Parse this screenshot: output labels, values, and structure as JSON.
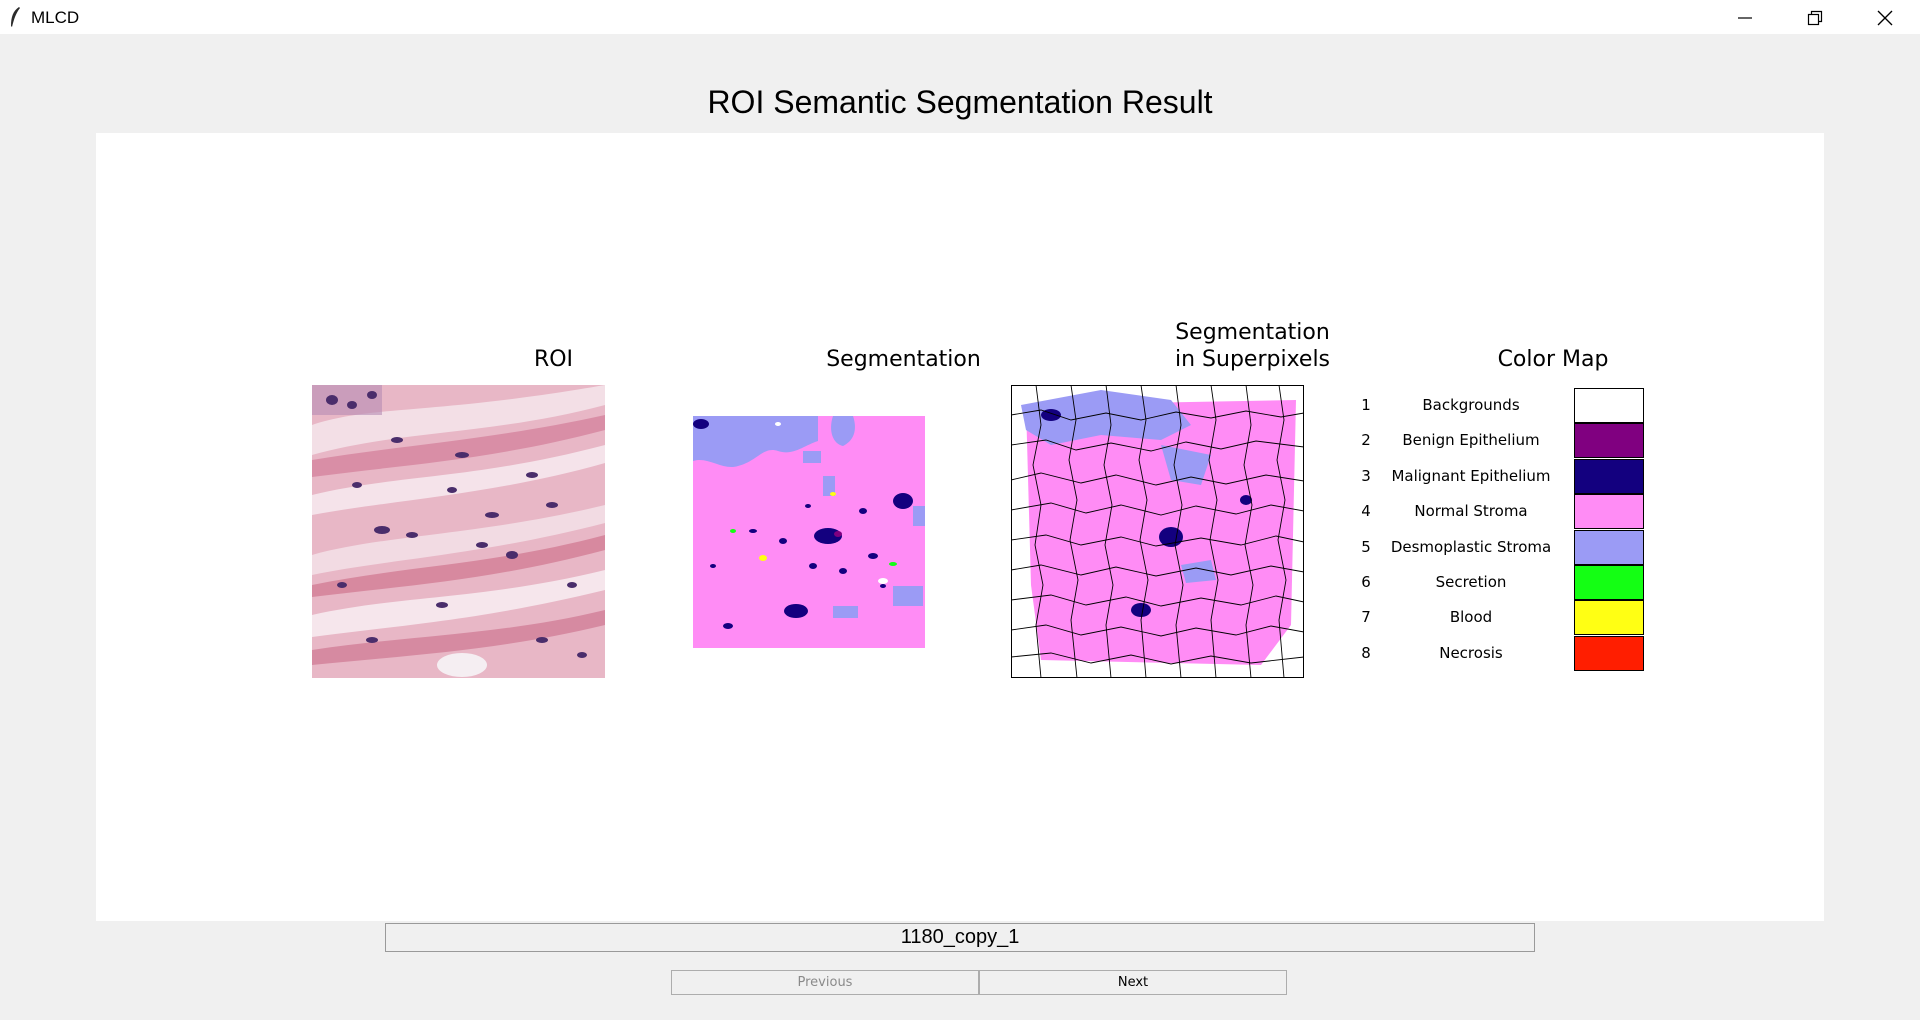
{
  "window": {
    "title": "MLCD"
  },
  "page": {
    "title": "ROI Semantic Segmentation Result"
  },
  "panels": {
    "roi_title": "ROI",
    "segmentation_title": "Segmentation",
    "superpixels_title": "Segmentation\nin Superpixels",
    "colormap_title": "Color Map"
  },
  "color_map": [
    {
      "index": "1",
      "label": "Backgrounds",
      "color": "#ffffff"
    },
    {
      "index": "2",
      "label": "Benign Epithelium",
      "color": "#800080"
    },
    {
      "index": "3",
      "label": "Malignant Epithelium",
      "color": "#13007f"
    },
    {
      "index": "4",
      "label": "Normal Stroma",
      "color": "#ff8cf5"
    },
    {
      "index": "5",
      "label": "Desmoplastic Stroma",
      "color": "#9b9bf5"
    },
    {
      "index": "6",
      "label": "Secretion",
      "color": "#14ff14"
    },
    {
      "index": "7",
      "label": "Blood",
      "color": "#ffff14"
    },
    {
      "index": "8",
      "label": "Necrosis",
      "color": "#ff1e00"
    }
  ],
  "filename": "1180_copy_1",
  "buttons": {
    "previous": "Previous",
    "next": "Next"
  }
}
